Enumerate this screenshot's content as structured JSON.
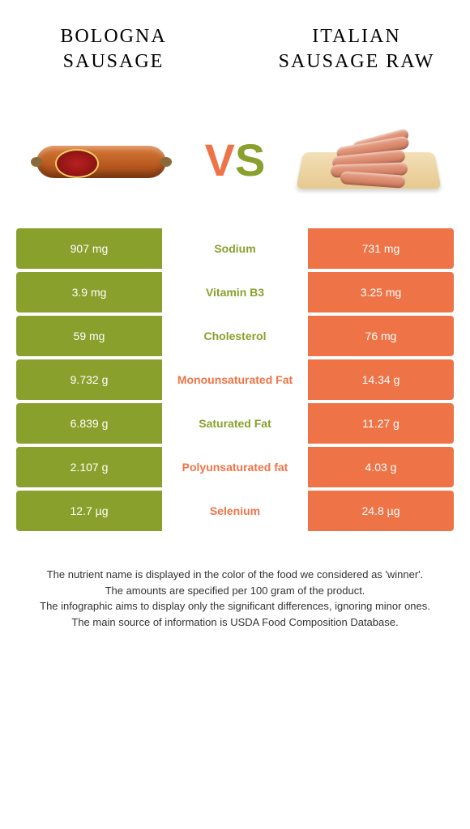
{
  "header": {
    "left_title": "Bologna sausage",
    "right_title": "Italian sausage raw"
  },
  "colors": {
    "left": "#89a02c",
    "right": "#ee7447",
    "left_text": "#89a02c",
    "right_text": "#ee7447"
  },
  "rows": [
    {
      "label": "Sodium",
      "left": "907 mg",
      "right": "731 mg",
      "winner": "left"
    },
    {
      "label": "Vitamin B3",
      "left": "3.9 mg",
      "right": "3.25 mg",
      "winner": "left"
    },
    {
      "label": "Cholesterol",
      "left": "59 mg",
      "right": "76 mg",
      "winner": "left"
    },
    {
      "label": "Monounsaturated Fat",
      "left": "9.732 g",
      "right": "14.34 g",
      "winner": "right"
    },
    {
      "label": "Saturated Fat",
      "left": "6.839 g",
      "right": "11.27 g",
      "winner": "left"
    },
    {
      "label": "Polyunsaturated fat",
      "left": "2.107 g",
      "right": "4.03 g",
      "winner": "right"
    },
    {
      "label": "Selenium",
      "left": "12.7 µg",
      "right": "24.8 µg",
      "winner": "right"
    }
  ],
  "footer": {
    "line1": "The nutrient name is displayed in the color of the food we considered as 'winner'.",
    "line2": "The amounts are specified per 100 gram of the product.",
    "line3": "The infographic aims to display only the significant differences, ignoring minor ones.",
    "line4": "The main source of information is USDA Food Composition Database."
  }
}
